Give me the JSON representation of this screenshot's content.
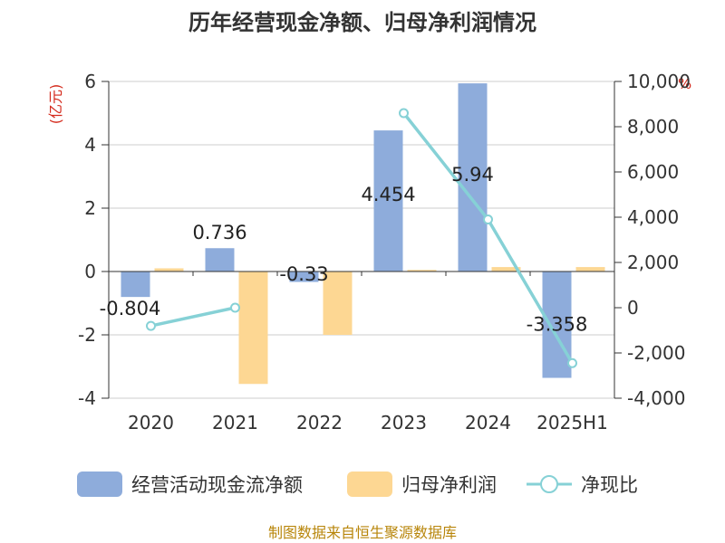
{
  "chart_data": {
    "type": "bar",
    "title": "历年经营现金净额、归母净利润情况",
    "categories": [
      "2020",
      "2021",
      "2022",
      "2023",
      "2024",
      "2025H1"
    ],
    "series": [
      {
        "name": "经营活动现金流净额",
        "kind": "bar",
        "axis": "left",
        "color": "#8eacdb",
        "values": [
          -0.804,
          0.736,
          -0.33,
          4.454,
          5.94,
          -3.358
        ],
        "labels": [
          "-0.804",
          "0.736",
          "-0.33",
          "4.454",
          "5.94",
          "-3.358"
        ]
      },
      {
        "name": "归母净利润",
        "kind": "bar",
        "axis": "left",
        "color": "#fdd793",
        "values": [
          0.1,
          -3.55,
          -2.0,
          0.05,
          0.14,
          0.14
        ]
      },
      {
        "name": "净现比",
        "kind": "line",
        "axis": "right",
        "color": "#86d1d6",
        "values": [
          -804,
          0,
          null,
          8600,
          3900,
          -2450
        ]
      }
    ],
    "left_axis": {
      "unit": "(亿元)",
      "ylim": [
        -4,
        6
      ],
      "ticks": [
        "-4",
        "-2",
        "0",
        "2",
        "4",
        "6"
      ]
    },
    "right_axis": {
      "unit": "%",
      "ylim": [
        -4000,
        10000
      ],
      "ticks": [
        "-4,000",
        "-2,000",
        "0",
        "2,000",
        "4,000",
        "6,000",
        "8,000",
        "10,000"
      ]
    },
    "source": "制图数据来自恒生聚源数据库"
  }
}
